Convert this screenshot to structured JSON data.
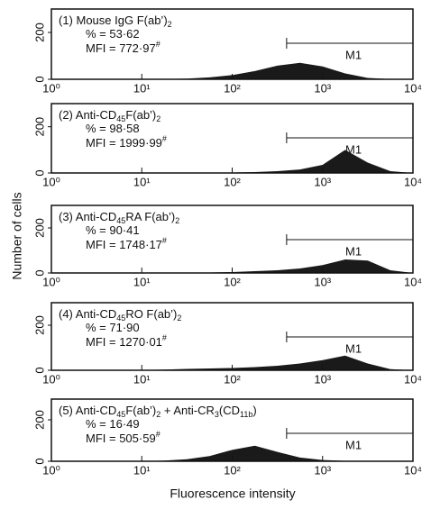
{
  "figure": {
    "xlabel": "Fluorescence intensity",
    "ylabel": "Number of cells"
  },
  "chart_data": [
    {
      "type": "area",
      "color": "#1a1a1a",
      "log_x": true,
      "title": [
        {
          "text": "(1) Mouse IgG F(ab’)"
        },
        {
          "text": "2",
          "sub": true
        }
      ],
      "percent": [
        {
          "text": "% = 53·62"
        }
      ],
      "mfi": [
        {
          "text": "MFI = 772·97"
        },
        {
          "text": "#",
          "sup": true
        }
      ],
      "gate": {
        "label": "M1",
        "range": [
          400,
          10000
        ]
      },
      "x": [
        1,
        1.78,
        3.16,
        5.62,
        10,
        17.8,
        31.6,
        56.2,
        100,
        178,
        316,
        562,
        1000,
        1778,
        3162,
        5623,
        10000
      ],
      "values": [
        0,
        0,
        0,
        0,
        0,
        1,
        3,
        8,
        18,
        35,
        58,
        70,
        55,
        25,
        6,
        1,
        0
      ],
      "xlim": [
        1,
        10000
      ],
      "xticks": [
        {
          "value": 1,
          "label": "10⁰"
        },
        {
          "value": 10,
          "label": "10¹"
        },
        {
          "value": 100,
          "label": "10²"
        },
        {
          "value": 1000,
          "label": "10³"
        },
        {
          "value": 10000,
          "label": "10⁴"
        }
      ],
      "ylim": [
        0,
        300
      ],
      "yticks": [
        0,
        200
      ]
    },
    {
      "type": "area",
      "color": "#1a1a1a",
      "log_x": true,
      "title": [
        {
          "text": "(2) Anti-CD"
        },
        {
          "text": "45",
          "sub": true
        },
        {
          "text": "F(ab’)"
        },
        {
          "text": "2",
          "sub": true
        }
      ],
      "percent": [
        {
          "text": "% = 98·58"
        }
      ],
      "mfi": [
        {
          "text": "MFI = 1999·99"
        },
        {
          "text": "#",
          "sup": true
        }
      ],
      "gate": {
        "label": "M1",
        "range": [
          400,
          10000
        ]
      },
      "x": [
        1,
        1.78,
        3.16,
        5.62,
        10,
        17.8,
        31.6,
        56.2,
        100,
        178,
        316,
        562,
        1000,
        1778,
        3162,
        5623,
        10000
      ],
      "values": [
        0,
        0,
        0,
        0,
        0,
        0,
        0,
        1,
        2,
        4,
        8,
        15,
        35,
        100,
        45,
        8,
        0
      ],
      "xlim": [
        1,
        10000
      ],
      "xticks": [
        {
          "value": 1,
          "label": "10⁰"
        },
        {
          "value": 10,
          "label": "10¹"
        },
        {
          "value": 100,
          "label": "10²"
        },
        {
          "value": 1000,
          "label": "10³"
        },
        {
          "value": 10000,
          "label": "10⁴"
        }
      ],
      "ylim": [
        0,
        300
      ],
      "yticks": [
        0,
        200
      ]
    },
    {
      "type": "area",
      "color": "#1a1a1a",
      "log_x": true,
      "title": [
        {
          "text": "(3) Anti-CD"
        },
        {
          "text": "45",
          "sub": true
        },
        {
          "text": "RA F(ab’)"
        },
        {
          "text": "2",
          "sub": true
        }
      ],
      "percent": [
        {
          "text": "% = 90·41"
        }
      ],
      "mfi": [
        {
          "text": "MFI = 1748·17"
        },
        {
          "text": "#",
          "sup": true
        }
      ],
      "gate": {
        "label": "M1",
        "range": [
          400,
          10000
        ]
      },
      "x": [
        1,
        1.78,
        3.16,
        5.62,
        10,
        17.8,
        31.6,
        56.2,
        100,
        178,
        316,
        562,
        1000,
        1778,
        3162,
        5623,
        10000
      ],
      "values": [
        0,
        0,
        0,
        0,
        0,
        0,
        1,
        2,
        4,
        8,
        12,
        20,
        35,
        60,
        55,
        12,
        0
      ],
      "xlim": [
        1,
        10000
      ],
      "xticks": [
        {
          "value": 1,
          "label": "10⁰"
        },
        {
          "value": 10,
          "label": "10¹"
        },
        {
          "value": 100,
          "label": "10²"
        },
        {
          "value": 1000,
          "label": "10³"
        },
        {
          "value": 10000,
          "label": "10⁴"
        }
      ],
      "ylim": [
        0,
        300
      ],
      "yticks": [
        0,
        200
      ]
    },
    {
      "type": "area",
      "color": "#1a1a1a",
      "log_x": true,
      "title": [
        {
          "text": "(4) Anti-CD"
        },
        {
          "text": "45",
          "sub": true
        },
        {
          "text": "RO F(ab’)"
        },
        {
          "text": "2",
          "sub": true
        }
      ],
      "percent": [
        {
          "text": "% = 71·90"
        }
      ],
      "mfi": [
        {
          "text": "MFI = 1270·01"
        },
        {
          "text": "#",
          "sup": true
        }
      ],
      "gate": {
        "label": "M1",
        "range": [
          400,
          10000
        ]
      },
      "x": [
        1,
        1.78,
        3.16,
        5.62,
        10,
        17.8,
        31.6,
        56.2,
        100,
        178,
        316,
        562,
        1000,
        1778,
        3162,
        5623,
        10000
      ],
      "values": [
        0,
        0,
        0,
        0,
        1,
        3,
        6,
        8,
        10,
        14,
        20,
        30,
        45,
        65,
        30,
        5,
        0
      ],
      "xlim": [
        1,
        10000
      ],
      "xticks": [
        {
          "value": 1,
          "label": "10⁰"
        },
        {
          "value": 10,
          "label": "10¹"
        },
        {
          "value": 100,
          "label": "10²"
        },
        {
          "value": 1000,
          "label": "10³"
        },
        {
          "value": 10000,
          "label": "10⁴"
        }
      ],
      "ylim": [
        0,
        300
      ],
      "yticks": [
        0,
        200
      ]
    },
    {
      "type": "area",
      "color": "#1a1a1a",
      "log_x": true,
      "title": [
        {
          "text": "(5) Anti-CD"
        },
        {
          "text": "45",
          "sub": true
        },
        {
          "text": "F(ab’)"
        },
        {
          "text": "2",
          "sub": true
        },
        {
          "text": " + Anti-CR"
        },
        {
          "text": "3",
          "sub": true
        },
        {
          "text": "(CD"
        },
        {
          "text": "11b",
          "sub": true
        },
        {
          "text": ")"
        }
      ],
      "percent": [
        {
          "text": "% = 16·49"
        }
      ],
      "mfi": [
        {
          "text": "MFI = 505·59"
        },
        {
          "text": "#",
          "sup": true
        }
      ],
      "gate": {
        "label": "M1",
        "range": [
          400,
          10000
        ]
      },
      "x": [
        1,
        1.78,
        3.16,
        5.62,
        10,
        17.8,
        31.6,
        56.2,
        100,
        178,
        316,
        562,
        1000,
        1778,
        3162,
        5623,
        10000
      ],
      "values": [
        0,
        0,
        0,
        0,
        0,
        3,
        10,
        25,
        55,
        75,
        45,
        18,
        6,
        2,
        0,
        0,
        0
      ],
      "xlim": [
        1,
        10000
      ],
      "xticks": [
        {
          "value": 1,
          "label": "10⁰"
        },
        {
          "value": 10,
          "label": "10¹"
        },
        {
          "value": 100,
          "label": "10²"
        },
        {
          "value": 1000,
          "label": "10³"
        },
        {
          "value": 10000,
          "label": "10⁴"
        }
      ],
      "ylim": [
        0,
        300
      ],
      "yticks": [
        0,
        200
      ]
    }
  ]
}
